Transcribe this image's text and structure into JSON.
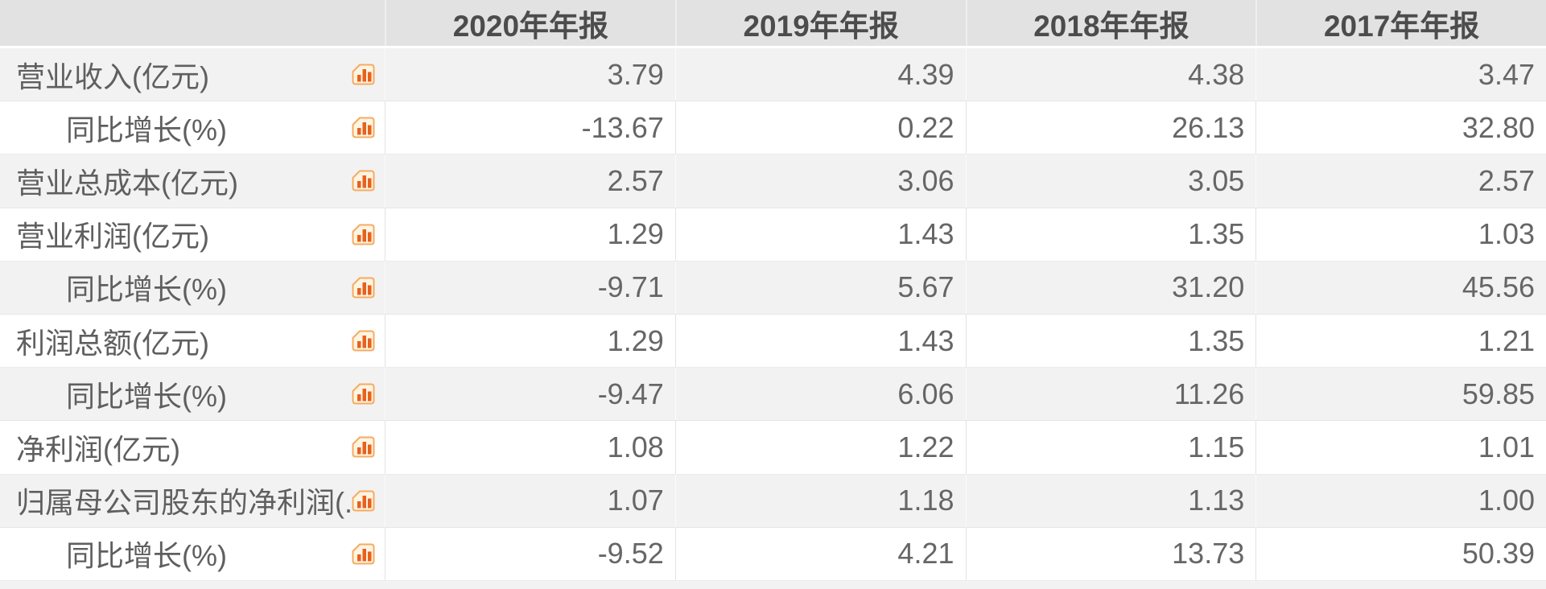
{
  "table": {
    "columns": [
      "2020年年报",
      "2019年年报",
      "2018年年报",
      "2017年年报"
    ],
    "rows": [
      {
        "label": "营业收入(亿元)",
        "indent": false,
        "values": [
          "3.79",
          "4.39",
          "4.38",
          "3.47"
        ]
      },
      {
        "label": "同比增长(%)",
        "indent": true,
        "values": [
          "-13.67",
          "0.22",
          "26.13",
          "32.80"
        ]
      },
      {
        "label": "营业总成本(亿元)",
        "indent": false,
        "values": [
          "2.57",
          "3.06",
          "3.05",
          "2.57"
        ]
      },
      {
        "label": "营业利润(亿元)",
        "indent": false,
        "values": [
          "1.29",
          "1.43",
          "1.35",
          "1.03"
        ]
      },
      {
        "label": "同比增长(%)",
        "indent": true,
        "values": [
          "-9.71",
          "5.67",
          "31.20",
          "45.56"
        ]
      },
      {
        "label": "利润总额(亿元)",
        "indent": false,
        "values": [
          "1.29",
          "1.43",
          "1.35",
          "1.21"
        ]
      },
      {
        "label": "同比增长(%)",
        "indent": true,
        "values": [
          "-9.47",
          "6.06",
          "11.26",
          "59.85"
        ]
      },
      {
        "label": "净利润(亿元)",
        "indent": false,
        "values": [
          "1.08",
          "1.22",
          "1.15",
          "1.01"
        ]
      },
      {
        "label": "归属母公司股东的净利润(...",
        "indent": false,
        "values": [
          "1.07",
          "1.18",
          "1.13",
          "1.00"
        ]
      },
      {
        "label": "同比增长(%)",
        "indent": true,
        "values": [
          "-9.52",
          "4.21",
          "13.73",
          "50.39"
        ]
      }
    ],
    "row_icon": "bar-chart-icon"
  },
  "colors": {
    "header_bg": "#e2e2e2",
    "row_alt_bg": "#f2f2f2",
    "row_bg": "#ffffff",
    "header_text": "#4c4c4c",
    "label_text": "#5f5f5f",
    "value_text": "#666666",
    "icon_bar_orange": "#e8611c",
    "icon_border": "#f5ab60",
    "icon_bg": "#fdf4e2",
    "divider": "#e3e3e3"
  }
}
